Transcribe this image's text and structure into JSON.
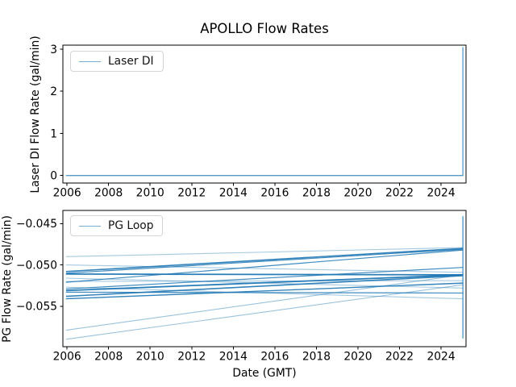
{
  "figure": {
    "title": "APOLLO Flow Rates",
    "background": "#ffffff",
    "line_color": "#1f77b4",
    "spine_color": "#000000",
    "text_color": "#000000"
  },
  "top_chart": {
    "ylabel": "Laser DI Flow Rate (gal/min)",
    "legend_label": "Laser DI"
  },
  "bottom_chart": {
    "ylabel": "PG Flow Rate (gal/min)",
    "xlabel": "Date (GMT)",
    "legend_label": "PG Loop"
  },
  "chart_data": [
    {
      "type": "line",
      "title": "APOLLO Flow Rates",
      "xlabel": "",
      "ylabel": "Laser DI Flow Rate (gal/min)",
      "legend": [
        "Laser DI"
      ],
      "legend_position": "upper left",
      "grid": false,
      "xlim": [
        2005.8,
        2025.2
      ],
      "ylim": [
        -0.178,
        3.096
      ],
      "xticks": [
        2006,
        2008,
        2010,
        2012,
        2014,
        2016,
        2018,
        2020,
        2022,
        2024
      ],
      "xtick_labels": [
        "2006",
        "2008",
        "2010",
        "2012",
        "2014",
        "2016",
        "2018",
        "2020",
        "2022",
        "2024"
      ],
      "yticks": [
        0,
        1,
        2,
        3
      ],
      "ytick_labels": [
        "0",
        "1",
        "2",
        "3"
      ],
      "series": [
        {
          "name": "Laser DI",
          "x": [
            2005.95,
            2025.05,
            2025.05
          ],
          "y": [
            0,
            0,
            3.05
          ],
          "alpha": 0.75,
          "width": 1.3
        }
      ]
    },
    {
      "type": "line",
      "title": "",
      "xlabel": "Date (GMT)",
      "ylabel": "PG Flow Rate (gal/min)",
      "legend": [
        "PG Loop"
      ],
      "legend_position": "upper left",
      "grid": false,
      "xlim": [
        2005.8,
        2025.2
      ],
      "ylim": [
        -0.0599,
        -0.0434
      ],
      "xticks": [
        2006,
        2008,
        2010,
        2012,
        2014,
        2016,
        2018,
        2020,
        2022,
        2024
      ],
      "xtick_labels": [
        "2006",
        "2008",
        "2010",
        "2012",
        "2014",
        "2016",
        "2018",
        "2020",
        "2022",
        "2024"
      ],
      "yticks": [
        -0.045,
        -0.05,
        -0.055
      ],
      "ytick_labels": [
        "−0.045",
        "−0.050",
        "−0.055"
      ],
      "series": [
        {
          "name": "PG Loop",
          "x": [
            2005.95,
            2025.05
          ],
          "y": [
            -0.049,
            -0.0479
          ],
          "alpha": 0.4,
          "width": 1.1
        },
        {
          "name": "pg-loop-2",
          "x": [
            2005.95,
            2025.05
          ],
          "y": [
            -0.05,
            -0.0509
          ],
          "alpha": 0.4,
          "width": 1.1
        },
        {
          "name": "pg-loop-3",
          "x": [
            2005.95,
            2025.05
          ],
          "y": [
            -0.0516,
            -0.0528
          ],
          "alpha": 0.4,
          "width": 1.1
        },
        {
          "name": "pg-loop-4",
          "x": [
            2005.95,
            2025.05
          ],
          "y": [
            -0.052,
            -0.0519
          ],
          "alpha": 0.4,
          "width": 1.1
        },
        {
          "name": "pg-loop-5",
          "x": [
            2005.95,
            2025.05
          ],
          "y": [
            -0.0527,
            -0.0541
          ],
          "alpha": 0.4,
          "width": 1.1
        },
        {
          "name": "pg-loop-6",
          "x": [
            2005.95,
            2025.05
          ],
          "y": [
            -0.0579,
            -0.0512
          ],
          "alpha": 0.45,
          "width": 1.1
        },
        {
          "name": "pg-loop-7",
          "x": [
            2005.95,
            2025.05
          ],
          "y": [
            -0.059,
            -0.0524
          ],
          "alpha": 0.45,
          "width": 1.1
        },
        {
          "name": "pg-loop-8",
          "x": [
            2005.95,
            2025.05
          ],
          "y": [
            -0.0508,
            -0.048
          ],
          "alpha": 0.9,
          "width": 1.6
        },
        {
          "name": "pg-loop-9",
          "x": [
            2005.95,
            2025.05
          ],
          "y": [
            -0.051,
            -0.0481
          ],
          "alpha": 0.85,
          "width": 1.2
        },
        {
          "name": "pg-loop-10",
          "x": [
            2005.95,
            2025.05
          ],
          "y": [
            -0.0511,
            -0.0512
          ],
          "alpha": 0.95,
          "width": 1.8
        },
        {
          "name": "pg-loop-11",
          "x": [
            2005.95,
            2025.05
          ],
          "y": [
            -0.0521,
            -0.0482
          ],
          "alpha": 0.85,
          "width": 1.2
        },
        {
          "name": "pg-loop-12",
          "x": [
            2005.95,
            2025.05
          ],
          "y": [
            -0.0529,
            -0.0503
          ],
          "alpha": 0.85,
          "width": 1.2
        },
        {
          "name": "pg-loop-13",
          "x": [
            2005.95,
            2025.05
          ],
          "y": [
            -0.0531,
            -0.0512
          ],
          "alpha": 0.95,
          "width": 1.8
        },
        {
          "name": "pg-loop-14",
          "x": [
            2005.95,
            2025.05
          ],
          "y": [
            -0.0538,
            -0.0513
          ],
          "alpha": 0.9,
          "width": 1.6
        },
        {
          "name": "pg-loop-15",
          "x": [
            2005.95,
            2025.05
          ],
          "y": [
            -0.0541,
            -0.0522
          ],
          "alpha": 0.9,
          "width": 1.4
        },
        {
          "name": "pg-loop-16",
          "x": [
            2005.95,
            2025.05
          ],
          "y": [
            -0.0533,
            -0.0534
          ],
          "alpha": 0.85,
          "width": 1.2
        },
        {
          "name": "pg-loop-end-spike",
          "x": [
            2025.05,
            2025.05
          ],
          "y": [
            -0.0589,
            -0.0441
          ],
          "alpha": 0.85,
          "width": 1.2
        }
      ]
    }
  ]
}
